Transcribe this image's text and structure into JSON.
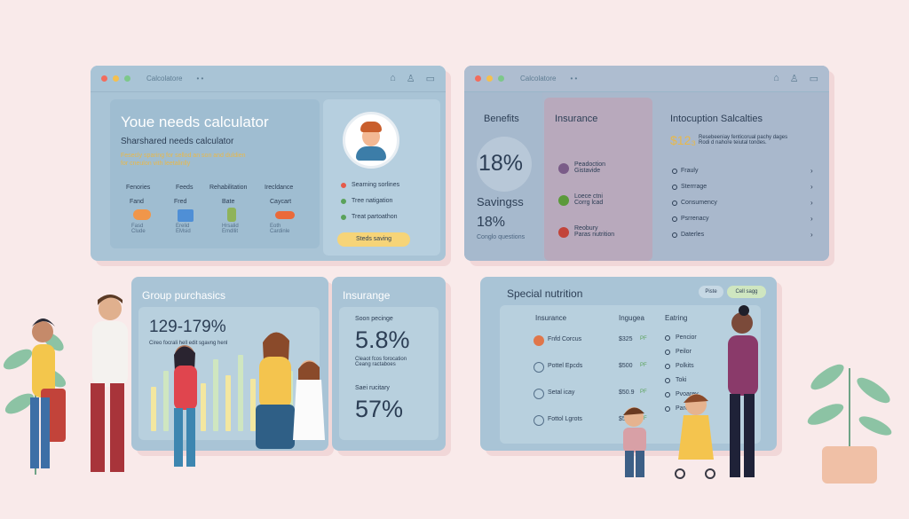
{
  "colors": {
    "background": "#f9eaea",
    "panel_blue": "#a9c4d6",
    "accent_yellow": "#f6d478",
    "accent_green": "#cfe6c0",
    "dot_red": "#f26c5d",
    "dot_yellow": "#f4c04f",
    "dot_green": "#7dc88a"
  },
  "window1": {
    "tab_text": "Calcolatore",
    "calculator": {
      "title": "Youe needs calculator",
      "subtitle": "Sharshared needs calculator",
      "description_line1": "Fesecly sparing for sellod an son and duldien",
      "description_line2": "for cneulon vith leetalinlly",
      "columns": [
        "Fenories",
        "Feeds",
        "Rehabilitation",
        "Irecldance"
      ],
      "cards": [
        {
          "label": "Fand",
          "sub": "Fasd\nClude",
          "icon": "food-icon"
        },
        {
          "label": "Fred",
          "sub": "Erelid\nEMsid",
          "icon": "document-icon"
        },
        {
          "label": "Bate",
          "sub": "Hrsalid\nEmdllit",
          "icon": "bottle-icon"
        },
        {
          "label": "Caycart",
          "sub": "Eoth\nCardinle",
          "icon": "pill-icon"
        }
      ]
    },
    "options": {
      "items": [
        "Searning sorlines",
        "Tree natigation",
        "Treat partoathon"
      ],
      "button": "Steds saving"
    }
  },
  "window2": {
    "tab_text": "Calcolatore",
    "benefits": {
      "heading": "Benefits",
      "value": "18%",
      "savings_label": "Savingss",
      "savings_value": "18%",
      "savings_sub": "Conglo questions"
    },
    "insurance": {
      "heading": "Insurance",
      "items": [
        {
          "label": "Peadoction\nGistavide",
          "icon": "leaf-icon"
        },
        {
          "label": "Loece ctni\nCorrg lcad",
          "icon": "vegetable-icon"
        },
        {
          "label": "Reobury\nParas nutrition",
          "icon": "apple-icon"
        }
      ]
    },
    "intocuption": {
      "heading": "Intocuption Salcalties",
      "price": "$12₃",
      "price_note": "Resebeeniay fenticorual pachy dages\nRodi d nahore teiutal tondes.",
      "items": [
        "Frauly",
        "Sterrrage",
        "Consumency",
        "Psrrenacy",
        "Daterles"
      ]
    }
  },
  "group": {
    "title": "Group purchasics",
    "range": "129-179%",
    "note": "Cireo focrali hell edit sgavng henl"
  },
  "insurange": {
    "title": "Insurange",
    "stat1_label": "Soon pecinge",
    "stat1_value": "5.8%",
    "stat1_note": "Cleaot fcos forocation\nCeang ractaboes",
    "stat2_label": "Saei rucitary",
    "stat2_value": "57%"
  },
  "special": {
    "title": "Special nutrition",
    "pill1": "Piste",
    "pill2": "Cell sagg",
    "headers": [
      "Insurance",
      "Ingugea",
      "Eatring"
    ],
    "rows": [
      {
        "name": "Fnfd Corcus",
        "price": "$325",
        "flag": "PF"
      },
      {
        "name": "Pottel Epcds",
        "price": "$500",
        "flag": "PF"
      },
      {
        "name": "Setal icay",
        "price": "$50.9",
        "flag": "PF"
      },
      {
        "name": "Fottol Lgrots",
        "price": "$550",
        "flag": "PF"
      }
    ],
    "eating": [
      "Pencior",
      "Peilor",
      "Polkits",
      "Toki",
      "Pvoarey",
      "Pareer"
    ]
  },
  "bars": [
    0.55,
    0.75,
    0.5,
    0.85,
    0.6,
    0.9,
    0.7,
    0.95,
    0.65,
    0.8,
    0.55,
    0.75
  ]
}
